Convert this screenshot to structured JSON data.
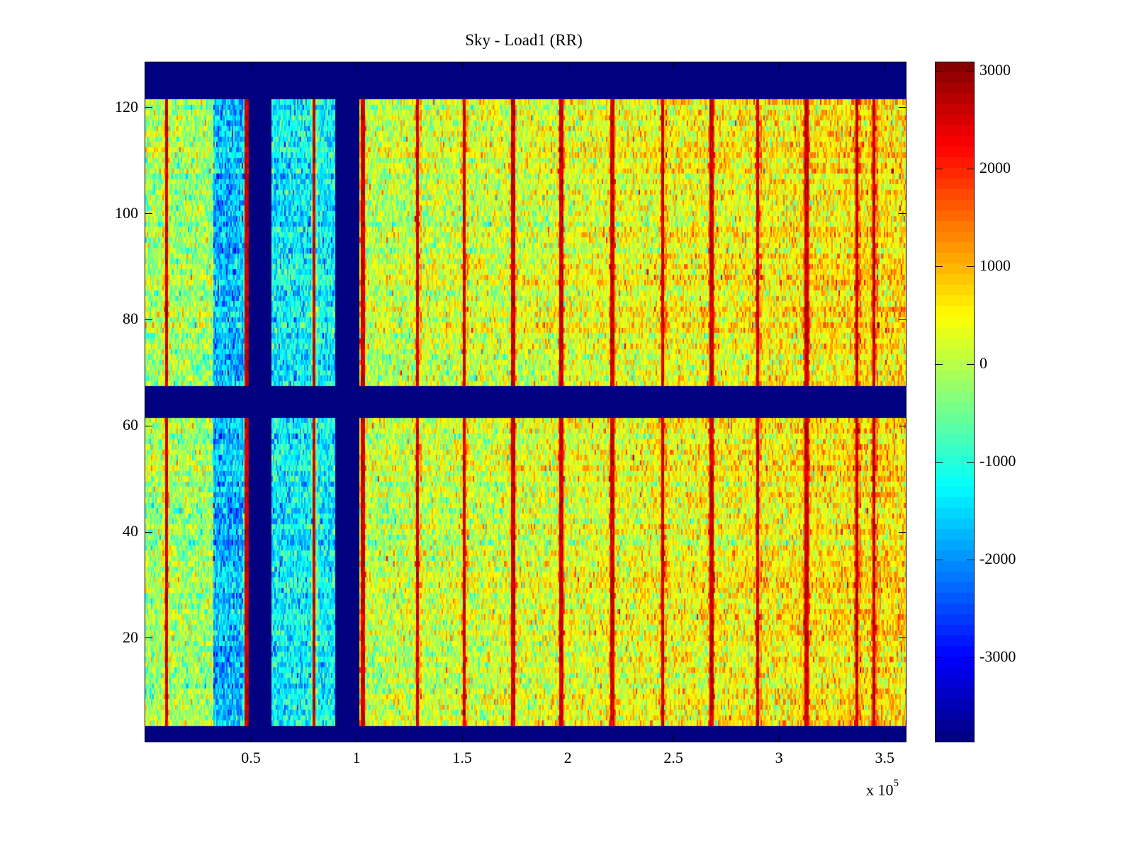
{
  "chart_data": {
    "type": "heatmap",
    "title": "Sky - Load1 (RR)",
    "xlabel": "",
    "ylabel": "",
    "x_exponent_label": "x 10",
    "x_exponent_power": "5",
    "xlim": [
      0,
      3.6
    ],
    "ylim": [
      0.5,
      128.5
    ],
    "x_ticks": [
      0.5,
      1,
      1.5,
      2,
      2.5,
      3,
      3.5
    ],
    "x_tick_labels": [
      "0.5",
      "1",
      "1.5",
      "2",
      "2.5",
      "3",
      "3.5"
    ],
    "y_ticks": [
      20,
      40,
      60,
      80,
      100,
      120
    ],
    "y_tick_labels": [
      "20",
      "40",
      "60",
      "80",
      "100",
      "120"
    ],
    "colormap": "jet",
    "clim": [
      -3860,
      3090
    ],
    "colorbar": {
      "ticks": [
        3000,
        2000,
        1000,
        0,
        -1000,
        -2000,
        -3000
      ],
      "tick_labels": [
        "3000",
        "2000",
        "1000",
        "0",
        "-1000",
        "-2000",
        "-3000"
      ],
      "placement": "right"
    },
    "masked_value": -3860,
    "masked_row_ranges": [
      [
        0.5,
        3.5
      ],
      [
        61.5,
        67.5
      ],
      [
        121.5,
        128.5
      ]
    ],
    "masked_column_ranges_x1e5": [
      [
        0.49,
        0.6
      ],
      [
        0.9,
        1.01
      ]
    ],
    "low_value_regions_x1e5": [
      [
        0.32,
        0.49
      ],
      [
        0.6,
        0.9
      ]
    ],
    "baseline_trend": {
      "x_start": 0,
      "value_start": -250,
      "x_end": 3.6,
      "value_end": 700
    },
    "region_levels": [
      {
        "x_range": [
          0.0,
          0.32
        ],
        "mean": -150
      },
      {
        "x_range": [
          0.32,
          0.49
        ],
        "mean": -1700
      },
      {
        "x_range": [
          0.6,
          0.9
        ],
        "mean": -1300
      },
      {
        "x_range": [
          1.01,
          3.6
        ],
        "mean": 300
      }
    ],
    "spike_columns_x1e5": [
      0.1,
      0.48,
      0.8,
      1.03,
      1.29,
      1.51,
      1.74,
      1.97,
      2.21,
      2.45,
      2.68,
      2.9,
      3.13,
      3.37,
      3.45
    ],
    "spike_value": 2900,
    "grid": false
  }
}
